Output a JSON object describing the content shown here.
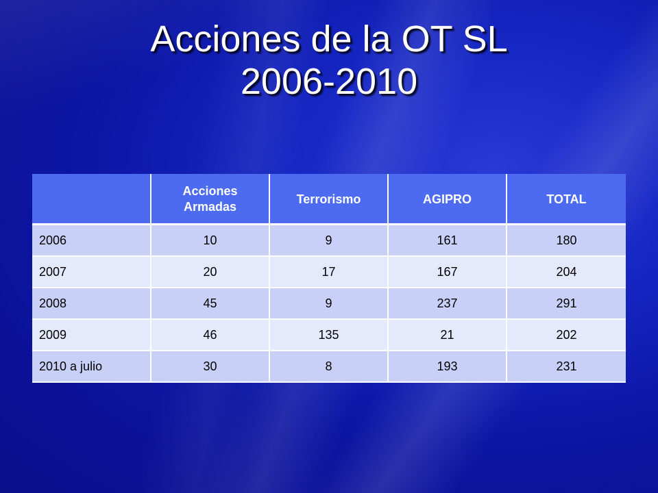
{
  "slide": {
    "title_line1": "Acciones de la OT SL",
    "title_line2": "2006-2010"
  },
  "table": {
    "headers": [
      "",
      "Acciones Armadas",
      "Terrorismo",
      "AGIPRO",
      "TOTAL"
    ],
    "rows": [
      [
        "2006",
        "10",
        "9",
        "161",
        "180"
      ],
      [
        "2007",
        "20",
        "17",
        "167",
        "204"
      ],
      [
        "2008",
        "45",
        "9",
        "237",
        "291"
      ],
      [
        "2009",
        "46",
        "135",
        "21",
        "202"
      ],
      [
        "2010 a julio",
        "30",
        "8",
        "193",
        "231"
      ]
    ]
  },
  "colors": {
    "header_bg": "#4d6bf0",
    "row_odd_bg": "#c9d0f8",
    "row_even_bg": "#e5e9fc",
    "background": "#1626c2"
  }
}
